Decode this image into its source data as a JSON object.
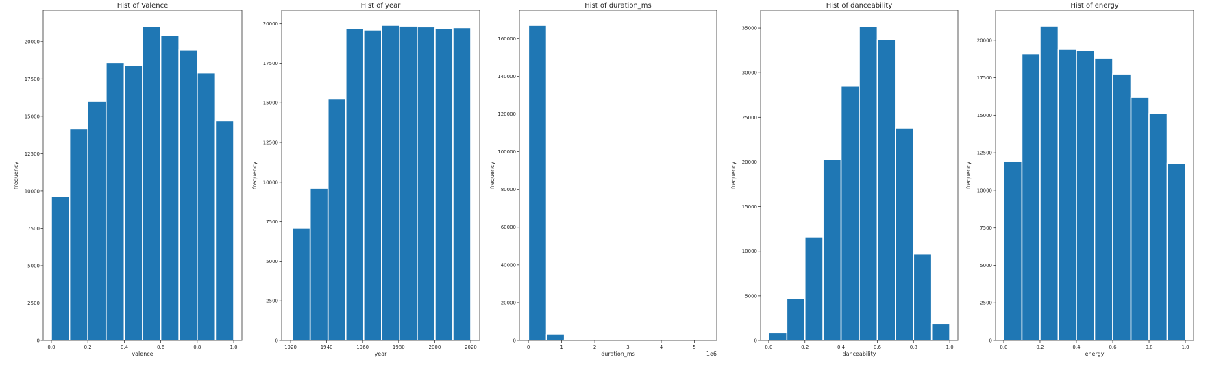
{
  "colors": {
    "bar": "#1f77b4",
    "bar_edge": "#ffffff"
  },
  "chart_data": [
    {
      "type": "bar",
      "title": "Hist of Valence",
      "xlabel": "valence",
      "ylabel": "frequency",
      "xlim": [
        -0.045,
        1.045
      ],
      "ylim": [
        0,
        22100
      ],
      "xticks": [
        0.0,
        0.2,
        0.4,
        0.6,
        0.8,
        1.0
      ],
      "xtick_labels": [
        "0.0",
        "0.2",
        "0.4",
        "0.6",
        "0.8",
        "1.0"
      ],
      "yticks": [
        0,
        2500,
        5000,
        7500,
        10000,
        12500,
        15000,
        17500,
        20000
      ],
      "ytick_labels": [
        "0",
        "2500",
        "5000",
        "7500",
        "10000",
        "12500",
        "15000",
        "17500",
        "20000"
      ],
      "offset_text": "",
      "bin_edges": [
        0.0,
        0.1,
        0.2,
        0.3,
        0.4,
        0.5,
        0.6,
        0.7,
        0.8,
        0.9,
        1.0
      ],
      "values": [
        9650,
        14150,
        16000,
        18600,
        18400,
        21000,
        20400,
        19450,
        17900,
        14700
      ]
    },
    {
      "type": "bar",
      "title": "Hist of year",
      "xlabel": "year",
      "ylabel": "frequency",
      "xlim": [
        1915.05,
        2024.95
      ],
      "ylim": [
        0,
        20850
      ],
      "xticks": [
        1920,
        1940,
        1960,
        1980,
        2000,
        2020
      ],
      "xtick_labels": [
        "1920",
        "1940",
        "1960",
        "1980",
        "2000",
        "2020"
      ],
      "yticks": [
        0,
        2500,
        5000,
        7500,
        10000,
        12500,
        15000,
        17500,
        20000
      ],
      "ytick_labels": [
        "0",
        "2500",
        "5000",
        "7500",
        "10000",
        "12500",
        "15000",
        "17500",
        "20000"
      ],
      "offset_text": "",
      "bin_edges": [
        1921,
        1930.9,
        1940.8,
        1950.7,
        1960.6,
        1970.5,
        1980.4,
        1990.3,
        2000.2,
        2010.1,
        2020
      ],
      "values": [
        7100,
        9600,
        15250,
        19700,
        19600,
        19900,
        19850,
        19800,
        19700,
        19750
      ]
    },
    {
      "type": "bar",
      "title": "Hist of duration_ms",
      "xlabel": "duration_ms",
      "ylabel": "frequency",
      "xlim": [
        -0.27,
        5.67
      ],
      "ylim": [
        0,
        175000
      ],
      "xticks": [
        0,
        1,
        2,
        3,
        4,
        5
      ],
      "xtick_labels": [
        "0",
        "1",
        "2",
        "3",
        "4",
        "5"
      ],
      "yticks": [
        0,
        20000,
        40000,
        60000,
        80000,
        100000,
        120000,
        140000,
        160000
      ],
      "ytick_labels": [
        "0",
        "20000",
        "40000",
        "60000",
        "80000",
        "100000",
        "120000",
        "140000",
        "160000"
      ],
      "offset_text": "1e6",
      "bin_edges": [
        0.005,
        0.545,
        1.085,
        1.625,
        2.165,
        2.705,
        3.245,
        3.785,
        4.325,
        4.865,
        5.405
      ],
      "values": [
        167000,
        3300,
        450,
        120,
        60,
        40,
        25,
        15,
        10,
        5
      ]
    },
    {
      "type": "bar",
      "title": "Hist of danceability",
      "xlabel": "danceability",
      "ylabel": "frequency",
      "xlim": [
        -0.045,
        1.045
      ],
      "ylim": [
        0,
        37000
      ],
      "xticks": [
        0.0,
        0.2,
        0.4,
        0.6,
        0.8,
        1.0
      ],
      "xtick_labels": [
        "0.0",
        "0.2",
        "0.4",
        "0.6",
        "0.8",
        "1.0"
      ],
      "yticks": [
        0,
        5000,
        10000,
        15000,
        20000,
        25000,
        30000,
        35000
      ],
      "ytick_labels": [
        "0",
        "5000",
        "10000",
        "15000",
        "20000",
        "25000",
        "30000",
        "35000"
      ],
      "offset_text": "",
      "bin_edges": [
        0.0,
        0.1,
        0.2,
        0.3,
        0.4,
        0.5,
        0.6,
        0.7,
        0.8,
        0.9,
        1.0
      ],
      "values": [
        900,
        4700,
        11600,
        20300,
        28500,
        35200,
        33700,
        23800,
        9700,
        1900
      ]
    },
    {
      "type": "bar",
      "title": "Hist of energy",
      "xlabel": "energy",
      "ylabel": "frequency",
      "xlim": [
        -0.045,
        1.045
      ],
      "ylim": [
        0,
        22000
      ],
      "xticks": [
        0.0,
        0.2,
        0.4,
        0.6,
        0.8,
        1.0
      ],
      "xtick_labels": [
        "0.0",
        "0.2",
        "0.4",
        "0.6",
        "0.8",
        "1.0"
      ],
      "yticks": [
        0,
        2500,
        5000,
        7500,
        10000,
        12500,
        15000,
        17500,
        20000
      ],
      "ytick_labels": [
        "0",
        "2500",
        "5000",
        "7500",
        "10000",
        "12500",
        "15000",
        "17500",
        "20000"
      ],
      "offset_text": "",
      "bin_edges": [
        0.0,
        0.1,
        0.2,
        0.3,
        0.4,
        0.5,
        0.6,
        0.7,
        0.8,
        0.9,
        1.0
      ],
      "values": [
        11950,
        19100,
        20950,
        19400,
        19300,
        18800,
        17750,
        16200,
        15100,
        11800
      ]
    }
  ]
}
